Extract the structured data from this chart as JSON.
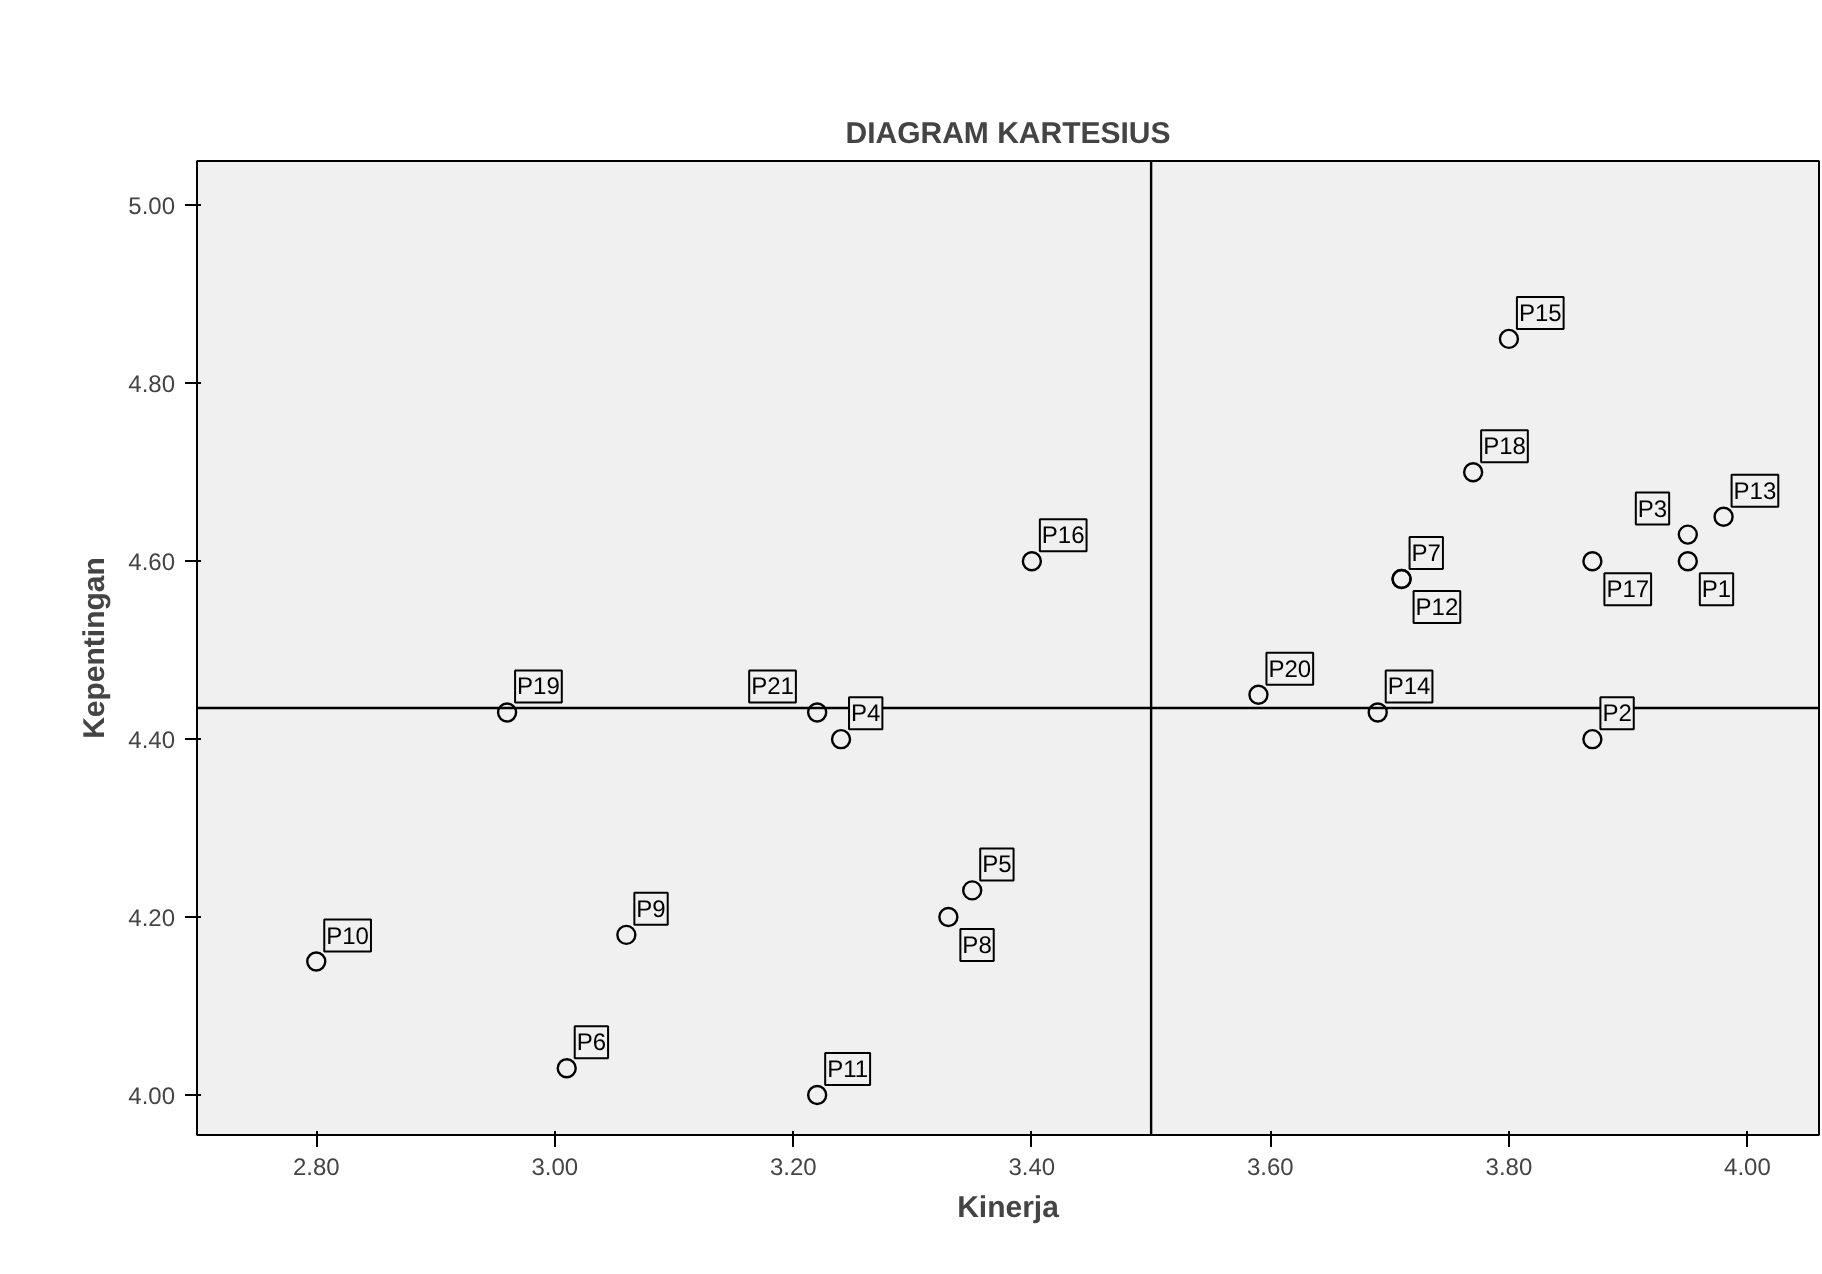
{
  "chart_data": {
    "type": "scatter",
    "title": "DIAGRAM KARTESIUS",
    "xlabel": "Kinerja",
    "ylabel": "Kepentingan",
    "xlim": [
      2.7,
      4.06
    ],
    "ylim": [
      3.955,
      5.05
    ],
    "xticks": [
      {
        "value": 2.8,
        "label": "2.80"
      },
      {
        "value": 3.0,
        "label": "3.00"
      },
      {
        "value": 3.2,
        "label": "3.20"
      },
      {
        "value": 3.4,
        "label": "3.40"
      },
      {
        "value": 3.6,
        "label": "3.60"
      },
      {
        "value": 3.8,
        "label": "3.80"
      },
      {
        "value": 4.0,
        "label": "4.00"
      }
    ],
    "yticks": [
      {
        "value": 4.0,
        "label": "4.00"
      },
      {
        "value": 4.2,
        "label": "4.20"
      },
      {
        "value": 4.4,
        "label": "4.40"
      },
      {
        "value": 4.6,
        "label": "4.60"
      },
      {
        "value": 4.8,
        "label": "4.80"
      },
      {
        "value": 5.0,
        "label": "5.00"
      }
    ],
    "grid": false,
    "marker": "circle",
    "ref_lines": [
      {
        "axis": "x",
        "value": 3.5,
        "color": "#000000"
      },
      {
        "axis": "y",
        "value": 4.435,
        "color": "#000000"
      }
    ],
    "series": [
      {
        "color": "#000000",
        "x": [
          3.95,
          3.87,
          3.95,
          3.24,
          3.35,
          3.01,
          3.71,
          3.33,
          3.06,
          2.8,
          3.22,
          3.71,
          3.98,
          3.69,
          3.8,
          3.4,
          3.87,
          3.77,
          2.96,
          3.59,
          3.22
        ],
        "values": [
          4.6,
          4.4,
          4.63,
          4.4,
          4.23,
          4.03,
          4.58,
          4.2,
          4.18,
          4.15,
          4.0,
          4.58,
          4.65,
          4.43,
          4.85,
          4.6,
          4.6,
          4.7,
          4.43,
          4.45,
          4.43
        ],
        "value_labels": [
          "P1",
          "P2",
          "P3",
          "P4",
          "P5",
          "P6",
          "P7",
          "P8",
          "P9",
          "P10",
          "P11",
          "P12",
          "P13",
          "P14",
          "P15",
          "P16",
          "P17",
          "P18",
          "P19",
          "P20",
          "P21"
        ]
      }
    ]
  }
}
